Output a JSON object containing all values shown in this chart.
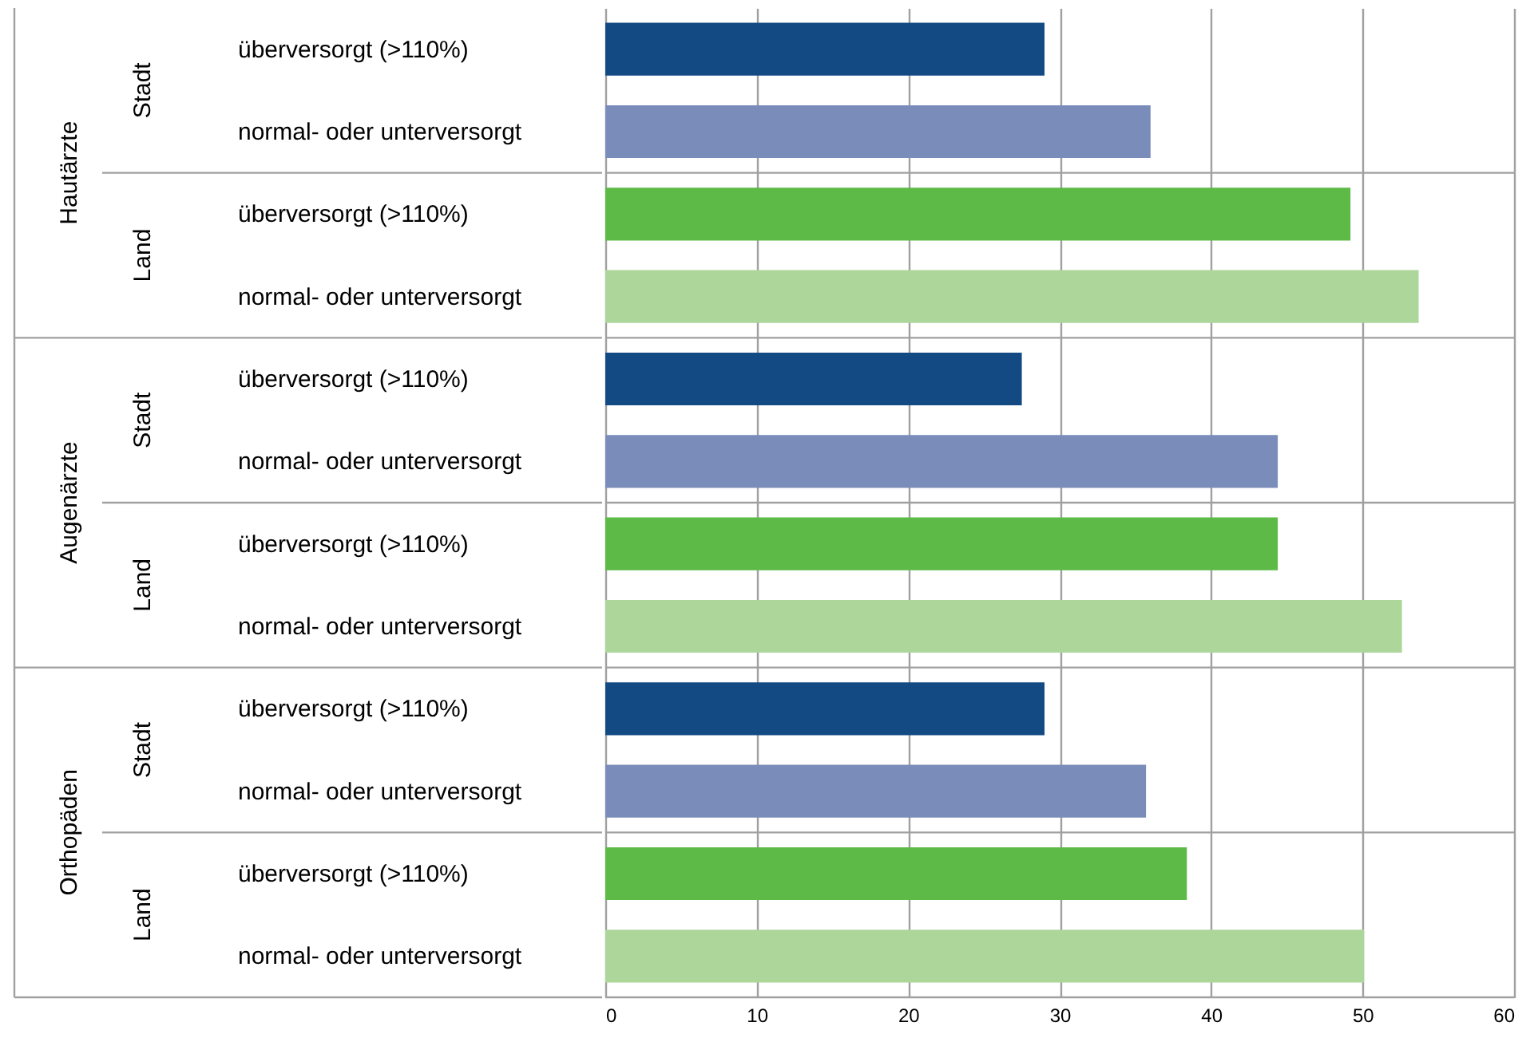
{
  "chart_data": {
    "type": "bar",
    "orientation": "horizontal",
    "categories": [
      "überversorgt (>110%)",
      "normal- oder unterversorgt",
      "überversorgt (>110%)",
      "normal- oder unterversorgt",
      "überversorgt (>110%)",
      "normal- oder unterversorgt",
      "überversorgt (>110%)",
      "normal- oder unterversorgt",
      "überversorgt (>110%)",
      "normal- oder unterversorgt",
      "überversorgt (>110%)",
      "normal- oder unterversorgt"
    ],
    "values": [
      29,
      36,
      49.2,
      53.7,
      27.5,
      44.4,
      44.4,
      52.6,
      29,
      35.7,
      38.4,
      50.1
    ],
    "colors": [
      "#134a83",
      "#7a8cba",
      "#5dba47",
      "#add69b",
      "#134a83",
      "#7a8cba",
      "#5dba47",
      "#add69b",
      "#134a83",
      "#7a8cba",
      "#5dba47",
      "#add69b"
    ],
    "xlim": [
      0,
      60
    ],
    "xticks": [
      0,
      10,
      20,
      30,
      40,
      50,
      60
    ],
    "grid": "x",
    "annotations": [
      "Hautärzte",
      "Augenärzte",
      "Orthopäden",
      "Stadt",
      "Land",
      "Stadt",
      "Land",
      "Stadt",
      "Land"
    ]
  }
}
